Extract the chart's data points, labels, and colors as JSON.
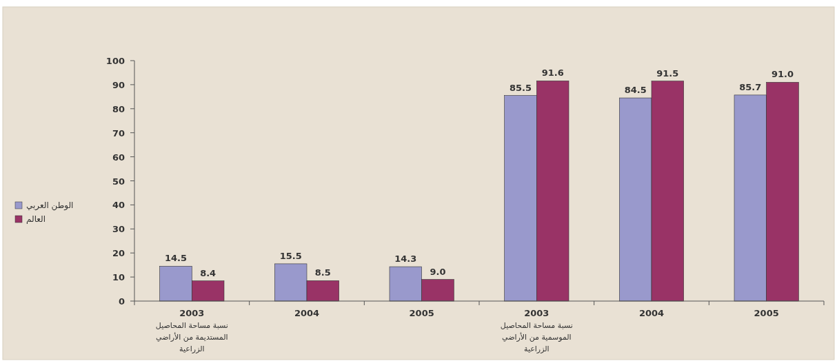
{
  "chart_data": {
    "type": "bar",
    "categories": [
      "2003\nنسبة مساحة المحاصيل\nالمستديمة من الأراضي\nالزراعية",
      "2004",
      "2005",
      "2003\nنسبة مساحة المحاصيل\nالموسمية من الأراضي\nالزراعية",
      "2004",
      "2005"
    ],
    "series": [
      {
        "name": "الوطن العربي",
        "color": "#9999cc",
        "values": [
          14.5,
          15.5,
          14.3,
          85.5,
          84.5,
          85.7
        ],
        "value_labels": [
          "14.5",
          "15.5",
          "14.3",
          "85.5",
          "84.5",
          "85.7"
        ]
      },
      {
        "name": "العالم",
        "color": "#993366",
        "values": [
          8.4,
          8.5,
          9.0,
          91.6,
          91.5,
          91.0
        ],
        "value_labels": [
          "8.4",
          "8.5",
          "9.0",
          "91.6",
          "91.5",
          "91.0"
        ]
      }
    ],
    "ylim": [
      0,
      100
    ],
    "yticks": [
      0,
      10,
      20,
      30,
      40,
      50,
      60,
      70,
      80,
      90,
      100
    ],
    "grid": false,
    "legend": "left"
  }
}
